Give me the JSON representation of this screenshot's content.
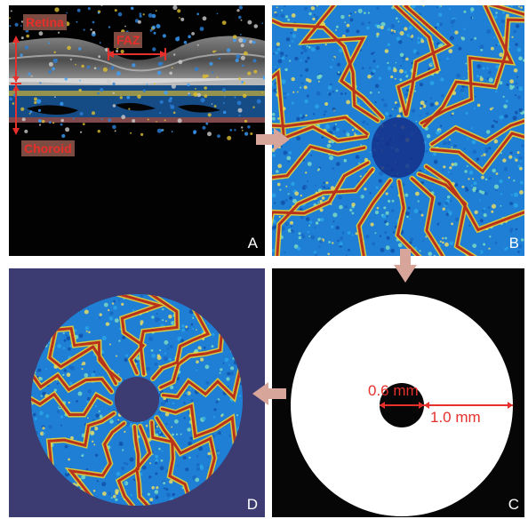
{
  "figure": {
    "panels": [
      {
        "id": "A",
        "label": "A"
      },
      {
        "id": "B",
        "label": "B"
      },
      {
        "id": "C",
        "label": "C"
      },
      {
        "id": "D",
        "label": "D"
      }
    ]
  },
  "panelA": {
    "retina_label": "Retina",
    "faz_label": "FAZ",
    "choroid_label": "Choroid"
  },
  "panelC": {
    "inner_diameter_label": "0.6 mm",
    "ring_width_label": "1.0 mm"
  },
  "colors": {
    "annotation_red": "#e5302c",
    "tag_background": "#7c4b42",
    "flow_arrow": "#d7a59a",
    "panelD_background": "#3c3c72",
    "vessel_red": "#b8321c",
    "vessel_yellow": "#f5d52a",
    "flow_blue": "#1f7fd4"
  }
}
